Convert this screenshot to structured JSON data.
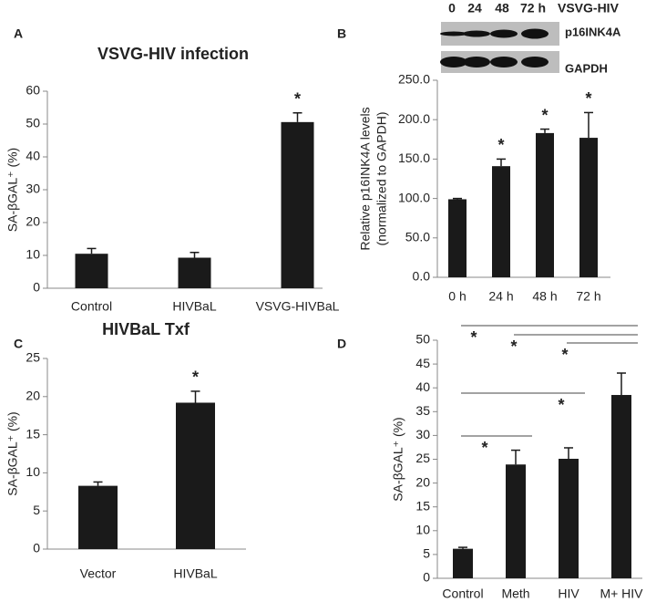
{
  "chart_data": [
    {
      "type": "bar",
      "panel": "A",
      "title": "VSVG-HIV infection",
      "ylabel": "SA-βGAL⁺ (%)",
      "categories": [
        "Control",
        "HIVBaL",
        "VSVG-HIVBaL"
      ],
      "series": [
        {
          "color": "#1a1a1a",
          "values": [
            10.5,
            9.3,
            50.6
          ],
          "errors": [
            1.6,
            1.6,
            2.8
          ]
        }
      ],
      "significance": [
        null,
        null,
        "*"
      ],
      "ylim": [
        0,
        60
      ],
      "yticks": [
        0,
        10,
        20,
        30,
        40,
        50,
        60
      ]
    },
    {
      "type": "bar",
      "panel": "B",
      "ylabel": [
        "Relative p16INK4A levels",
        "(normalized to GAPDH)"
      ],
      "categories": [
        "0 h",
        "24 h",
        "48 h",
        "72 h"
      ],
      "series": [
        {
          "color": "#1a1a1a",
          "values": [
            99,
            141,
            183,
            177
          ],
          "errors": [
            1,
            9,
            5,
            32
          ]
        }
      ],
      "significance": [
        null,
        "*",
        "*",
        "*"
      ],
      "ylim": [
        0,
        250
      ],
      "yticks": [
        {
          "value": 0,
          "label": "0.0"
        },
        {
          "value": 50,
          "label": "50.0"
        },
        {
          "value": 100,
          "label": "100.0"
        },
        {
          "value": 150,
          "label": "150.0"
        },
        {
          "value": 200,
          "label": "200.0"
        },
        {
          "value": 250,
          "label": "250.0"
        }
      ],
      "blot": {
        "lanes": [
          "0",
          "24",
          "48",
          "72 h"
        ],
        "condition": "VSVG-HIV",
        "rows": [
          "p16INK4A",
          "GAPDH"
        ]
      }
    },
    {
      "type": "bar",
      "panel": "C",
      "title": "HIVBaL Txf",
      "ylabel": "SA-βGAL⁺ (%)",
      "categories": [
        "Vector",
        "HIVBaL"
      ],
      "series": [
        {
          "color": "#1a1a1a",
          "values": [
            8.3,
            19.2
          ],
          "errors": [
            0.5,
            1.5
          ]
        }
      ],
      "significance": [
        null,
        "*"
      ],
      "ylim": [
        0,
        25
      ],
      "yticks": [
        0,
        5,
        10,
        15,
        20,
        25
      ]
    },
    {
      "type": "bar",
      "panel": "D",
      "ylabel": "SA-βGAL⁺ (%)",
      "categories": [
        "Control",
        "Meth",
        "HIV",
        "M+ HIV"
      ],
      "series": [
        {
          "color": "#1a1a1a",
          "values": [
            6.2,
            23.9,
            25.1,
            38.5
          ],
          "errors": [
            0.3,
            3,
            2.3,
            4.6
          ]
        }
      ],
      "comparisons": [
        {
          "pair": [
            "Control",
            "Meth"
          ],
          "label": "*"
        },
        {
          "pair": [
            "Control",
            "HIV"
          ],
          "label": "*"
        },
        {
          "pair": [
            "Control",
            "M+ HIV"
          ],
          "label": "*"
        },
        {
          "pair": [
            "Meth",
            "M+ HIV"
          ],
          "label": "*"
        },
        {
          "pair": [
            "HIV",
            "M+ HIV"
          ],
          "label": "*"
        }
      ],
      "ylim": [
        0,
        50
      ],
      "yticks": [
        0,
        5,
        10,
        15,
        20,
        25,
        30,
        35,
        40,
        45,
        50
      ]
    }
  ]
}
